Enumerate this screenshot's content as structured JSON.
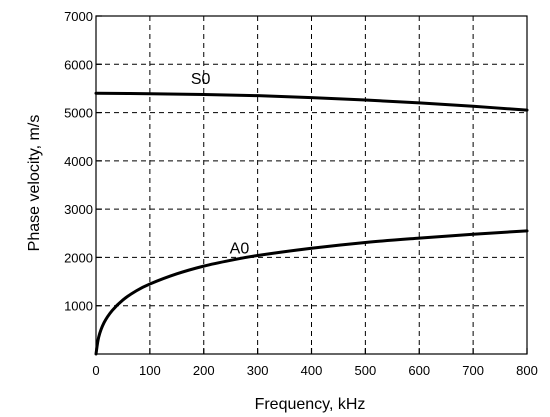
{
  "chart_data": {
    "type": "line",
    "xlabel": "Frequency, kHz",
    "ylabel": "Phase velocity, m/s",
    "xlim": [
      0,
      800
    ],
    "ylim": [
      0,
      7000
    ],
    "x_ticks": [
      0,
      100,
      200,
      300,
      400,
      500,
      600,
      700,
      800
    ],
    "y_ticks": [
      1000,
      2000,
      3000,
      4000,
      5000,
      6000,
      7000
    ],
    "grid": true,
    "series": [
      {
        "name": "S0",
        "x": [
          0,
          100,
          200,
          300,
          400,
          500,
          600,
          700,
          800
        ],
        "y": [
          5400,
          5390,
          5375,
          5350,
          5310,
          5260,
          5200,
          5130,
          5050
        ]
      },
      {
        "name": "A0",
        "x": [
          0,
          5,
          15,
          30,
          50,
          75,
          100,
          150,
          200,
          250,
          300,
          400,
          500,
          600,
          700,
          800
        ],
        "y": [
          0,
          350,
          650,
          900,
          1120,
          1310,
          1450,
          1660,
          1820,
          1940,
          2040,
          2190,
          2310,
          2400,
          2480,
          2550
        ]
      }
    ]
  }
}
